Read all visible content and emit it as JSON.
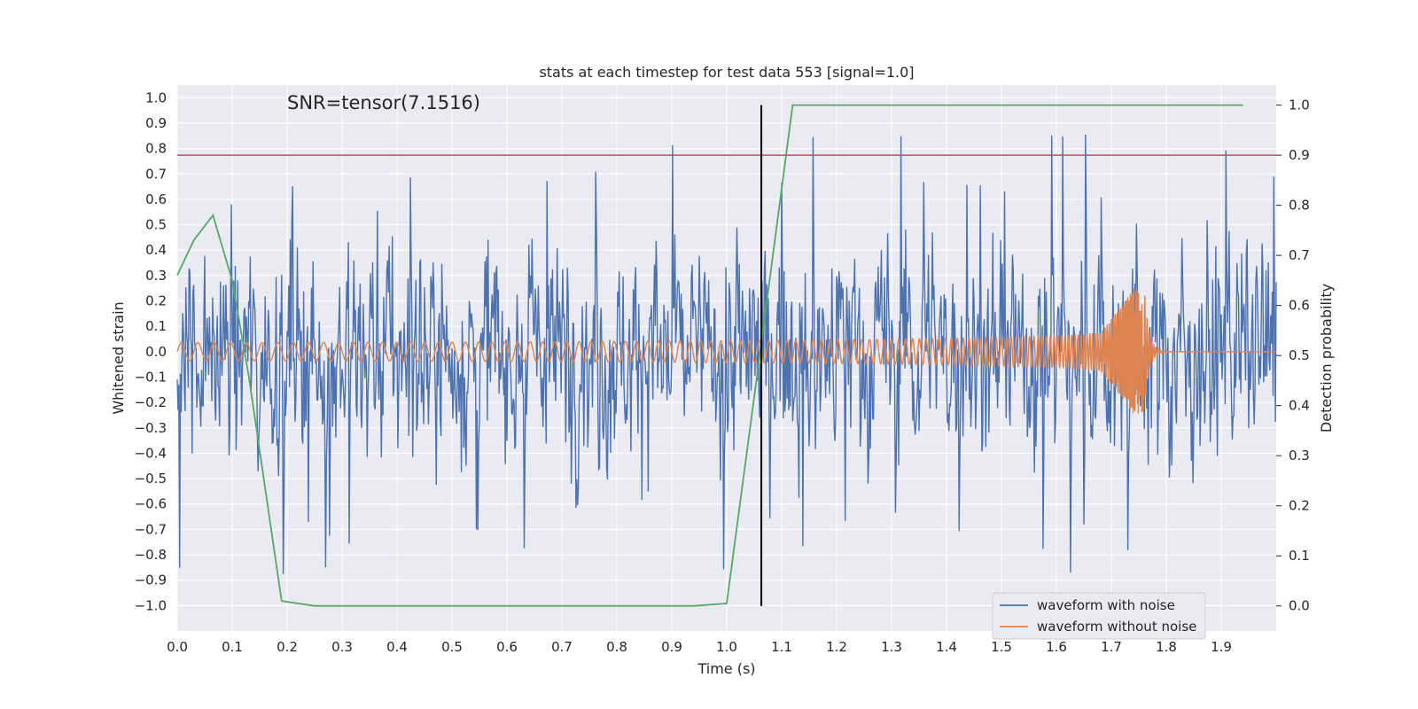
{
  "chart_data": {
    "type": "line",
    "title": "stats at each timestep for test data 553 [signal=1.0]",
    "xlabel": "Time (s)",
    "ylabel": "Whitened strain",
    "y2label": "Detection probability",
    "annotation": "SNR=tensor(7.1516)",
    "xlim": [
      0,
      2.0
    ],
    "ylim": [
      -1.1,
      1.05
    ],
    "y2lim": [
      -0.05,
      1.04
    ],
    "xticks": [
      "0.0",
      "0.1",
      "0.2",
      "0.3",
      "0.4",
      "0.5",
      "0.6",
      "0.7",
      "0.8",
      "0.9",
      "1.0",
      "1.1",
      "1.2",
      "1.3",
      "1.4",
      "1.5",
      "1.6",
      "1.7",
      "1.8",
      "1.9"
    ],
    "yticks": [
      "1.0",
      "0.9",
      "0.8",
      "0.7",
      "0.6",
      "0.5",
      "0.4",
      "0.3",
      "0.2",
      "0.1",
      "0.0",
      "−0.1",
      "−0.2",
      "−0.3",
      "−0.4",
      "−0.5",
      "−0.6",
      "−0.7",
      "−0.8",
      "−0.9",
      "−1.0"
    ],
    "y2ticks": [
      "1.0",
      "0.9",
      "0.8",
      "0.7",
      "0.6",
      "0.5",
      "0.4",
      "0.3",
      "0.2",
      "0.1",
      "0.0"
    ],
    "grid": true,
    "legend_position": "lower-right",
    "series": [
      {
        "name": "waveform with noise",
        "color": "#4c72b0",
        "axis": "left",
        "note": "dense noisy whitened strain, amplitude mostly within ±0.6, peaks near ±0.9",
        "amplitude_range": [
          -0.96,
          0.92
        ]
      },
      {
        "name": "waveform without noise",
        "color": "#dd8452",
        "axis": "left",
        "note": "chirp signal ~0.04 amplitude rising to ~0.25 peak at merger, then ringdown to 0",
        "merger_time": 1.76,
        "peak_amplitude": 0.25
      },
      {
        "name": "",
        "color": "#55a868",
        "axis": "right",
        "x": [
          0.0,
          0.03,
          0.065,
          0.1,
          0.13,
          0.19,
          0.25,
          0.4,
          0.6,
          0.8,
          0.94,
          1.0,
          1.06,
          1.12,
          1.2,
          1.5,
          1.94
        ],
        "y": [
          0.66,
          0.73,
          0.78,
          0.65,
          0.46,
          0.01,
          0.0,
          0.0,
          0.0,
          0.0,
          0.0,
          0.005,
          0.5,
          1.0,
          1.0,
          1.0,
          1.0
        ]
      }
    ],
    "hlines": [
      {
        "axis": "right",
        "y": 0.9,
        "color": "#c44e52"
      }
    ],
    "vlines": [
      {
        "x": 1.063,
        "y2_range": [
          0.0,
          1.0
        ],
        "color": "#000000"
      }
    ]
  }
}
